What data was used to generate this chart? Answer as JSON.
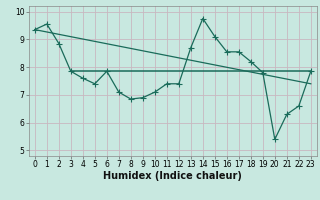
{
  "xlabel": "Humidex (Indice chaleur)",
  "bg_color": "#c8e8e0",
  "grid_color": "#c8b8c0",
  "line_color": "#1a6b5a",
  "xlim": [
    -0.5,
    23.5
  ],
  "ylim": [
    4.8,
    10.2
  ],
  "yticks": [
    5,
    6,
    7,
    8,
    9,
    10
  ],
  "xticks": [
    0,
    1,
    2,
    3,
    4,
    5,
    6,
    7,
    8,
    9,
    10,
    11,
    12,
    13,
    14,
    15,
    16,
    17,
    18,
    19,
    20,
    21,
    22,
    23
  ],
  "line1_x": [
    0,
    1,
    2,
    3,
    4,
    5,
    6,
    7,
    8,
    9,
    10,
    11,
    12,
    13,
    14,
    15,
    16,
    17,
    18,
    19,
    20,
    21,
    22,
    23
  ],
  "line1_y": [
    9.35,
    9.55,
    8.85,
    7.85,
    7.6,
    7.4,
    7.85,
    7.1,
    6.85,
    6.9,
    7.1,
    7.4,
    7.4,
    8.7,
    9.75,
    9.1,
    8.55,
    8.55,
    8.2,
    7.8,
    5.4,
    6.3,
    6.6,
    7.85
  ],
  "line2_x": [
    0,
    23
  ],
  "line2_y": [
    9.35,
    7.4
  ],
  "line3_x": [
    3,
    23
  ],
  "line3_y": [
    7.85,
    7.85
  ],
  "marker_size": 4,
  "tick_fontsize": 5.5,
  "xlabel_fontsize": 7
}
